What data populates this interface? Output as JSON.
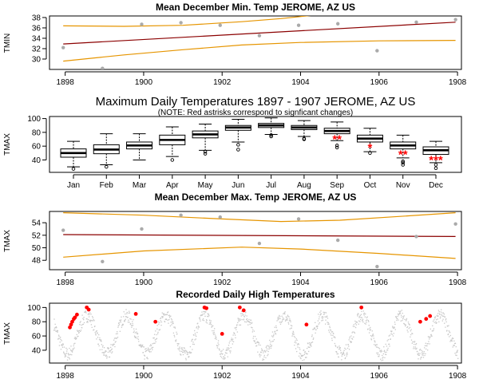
{
  "chart_data": [
    {
      "type": "scatter",
      "title": "Mean December Min. Temp JEROME, AZ US",
      "ylabel": "TMIN",
      "xlim": [
        1897.6,
        1908.1
      ],
      "ylim": [
        28,
        38.3
      ],
      "xticks": [
        1898,
        1900,
        1902,
        1904,
        1906,
        1908
      ],
      "yticks": [
        30,
        32,
        34,
        36,
        38
      ],
      "points": [
        [
          1897.95,
          32.2
        ],
        [
          1898.95,
          28.2
        ],
        [
          1899.95,
          36.7
        ],
        [
          1900.95,
          37.0
        ],
        [
          1901.95,
          36.5
        ],
        [
          1902.95,
          34.5
        ],
        [
          1903.95,
          36.5
        ],
        [
          1904.95,
          36.8
        ],
        [
          1905.95,
          31.6
        ],
        [
          1906.95,
          37.1
        ],
        [
          1907.95,
          37.6
        ]
      ],
      "fit": [
        [
          1897.95,
          32.9
        ],
        [
          1907.95,
          37.1
        ]
      ],
      "upper_band": [
        [
          1897.95,
          36.4
        ],
        [
          1899.5,
          36.3
        ],
        [
          1901,
          36.5
        ],
        [
          1902.5,
          37.2
        ],
        [
          1903.5,
          37.8
        ],
        [
          1904.4,
          38.5
        ]
      ],
      "lower_band": [
        [
          1897.95,
          29.6
        ],
        [
          1899.5,
          30.8
        ],
        [
          1901,
          31.8
        ],
        [
          1902.5,
          32.7
        ],
        [
          1904,
          33.2
        ],
        [
          1906,
          33.5
        ],
        [
          1907.95,
          33.6
        ]
      ]
    },
    {
      "type": "box",
      "title": "Maximum Daily Temperatures 1897 - 1907 JEROME, AZ US",
      "subtitle": "(NOTE: Red astrisks correspond to signficant changes)",
      "ylabel": "TMAX",
      "ylim": [
        22,
        103
      ],
      "yticks": [
        40,
        60,
        80,
        100
      ],
      "categories": [
        "Jan",
        "Feb",
        "Mar",
        "Apr",
        "May",
        "Jun",
        "Jul",
        "Aug",
        "Sep",
        "Oct",
        "Nov",
        "Dec"
      ],
      "boxes": [
        {
          "min": 30,
          "q1": 44,
          "median": 50,
          "q3": 56,
          "max": 67,
          "outliers": [
            27
          ]
        },
        {
          "min": 33,
          "q1": 49,
          "median": 55,
          "q3": 62,
          "max": 78,
          "outliers": [
            30
          ]
        },
        {
          "min": 40,
          "q1": 56,
          "median": 61,
          "q3": 66,
          "max": 78,
          "outliers": []
        },
        {
          "min": 45,
          "q1": 62,
          "median": 69,
          "q3": 76,
          "max": 88,
          "outliers": [
            40
          ]
        },
        {
          "min": 54,
          "q1": 72,
          "median": 77,
          "q3": 82,
          "max": 92,
          "outliers": [
            52,
            49
          ]
        },
        {
          "min": 66,
          "q1": 83,
          "median": 87,
          "q3": 90,
          "max": 99,
          "outliers": [
            62,
            55
          ]
        },
        {
          "min": 77,
          "q1": 87,
          "median": 90,
          "q3": 93,
          "max": 101,
          "outliers": [
            76,
            74
          ]
        },
        {
          "min": 74,
          "q1": 84,
          "median": 87,
          "q3": 90,
          "max": 97,
          "outliers": [
            71,
            70
          ]
        },
        {
          "min": 68,
          "q1": 78,
          "median": 82,
          "q3": 86,
          "max": 95,
          "outliers": [
            61,
            58
          ]
        },
        {
          "min": 52,
          "q1": 66,
          "median": 71,
          "q3": 76,
          "max": 86,
          "outliers": [
            50
          ]
        },
        {
          "min": 43,
          "q1": 56,
          "median": 61,
          "q3": 66,
          "max": 76,
          "outliers": [
            38,
            36,
            33
          ]
        },
        {
          "min": 36,
          "q1": 48,
          "median": 54,
          "q3": 59,
          "max": 67,
          "outliers": [
            33,
            28
          ]
        }
      ],
      "asterisks": {
        "Sep": 2,
        "Oct": 1,
        "Nov": 2,
        "Dec": 3
      },
      "asterisk_color": "#ff0000"
    },
    {
      "type": "scatter",
      "title": "Mean December Max. Temp JEROME, AZ US",
      "ylabel": "TMAX",
      "xlim": [
        1897.6,
        1908.1
      ],
      "ylim": [
        46.5,
        55.8
      ],
      "xticks": [
        1898,
        1900,
        1902,
        1904,
        1906,
        1908
      ],
      "yticks": [
        48,
        50,
        52,
        54
      ],
      "points": [
        [
          1897.95,
          52.8
        ],
        [
          1898.95,
          47.8
        ],
        [
          1899.95,
          53.0
        ],
        [
          1900.95,
          55.2
        ],
        [
          1901.95,
          54.9
        ],
        [
          1902.95,
          50.7
        ],
        [
          1903.95,
          54.6
        ],
        [
          1904.95,
          51.2
        ],
        [
          1905.95,
          47.0
        ],
        [
          1906.95,
          51.8
        ],
        [
          1907.95,
          53.8
        ]
      ],
      "fit": [
        [
          1897.95,
          52.1
        ],
        [
          1907.95,
          51.8
        ]
      ],
      "upper_band": [
        [
          1897.95,
          55.6
        ],
        [
          1900,
          55.2
        ],
        [
          1902,
          54.6
        ],
        [
          1903.5,
          54.2
        ],
        [
          1905,
          54.4
        ],
        [
          1906.5,
          55.0
        ],
        [
          1907.95,
          55.6
        ]
      ],
      "lower_band": [
        [
          1897.95,
          48.5
        ],
        [
          1900,
          49.5
        ],
        [
          1902.5,
          50.1
        ],
        [
          1904,
          49.8
        ],
        [
          1906,
          49.1
        ],
        [
          1907.95,
          48.3
        ]
      ]
    },
    {
      "type": "scatter",
      "title": "Recorded Daily High Temperatures",
      "ylabel": "TMAX",
      "xlim": [
        1897.6,
        1908.1
      ],
      "ylim": [
        22,
        106
      ],
      "xticks": [
        1898,
        1900,
        1902,
        1904,
        1906,
        1908
      ],
      "yticks": [
        40,
        60,
        80,
        100
      ],
      "series_color": "#c8c8c8",
      "highlight_color": "#ff0000",
      "highlights": [
        [
          1898.12,
          72
        ],
        [
          1898.15,
          76
        ],
        [
          1898.18,
          80
        ],
        [
          1898.22,
          84
        ],
        [
          1898.25,
          86
        ],
        [
          1898.3,
          90
        ],
        [
          1898.55,
          100
        ],
        [
          1898.6,
          97
        ],
        [
          1899.8,
          91
        ],
        [
          1900.3,
          80
        ],
        [
          1901.55,
          100
        ],
        [
          1901.6,
          99
        ],
        [
          1902.0,
          63
        ],
        [
          1902.45,
          100
        ],
        [
          1902.55,
          96
        ],
        [
          1904.15,
          76
        ],
        [
          1905.55,
          100
        ],
        [
          1907.05,
          80
        ],
        [
          1907.2,
          84
        ],
        [
          1907.3,
          88
        ]
      ]
    }
  ]
}
